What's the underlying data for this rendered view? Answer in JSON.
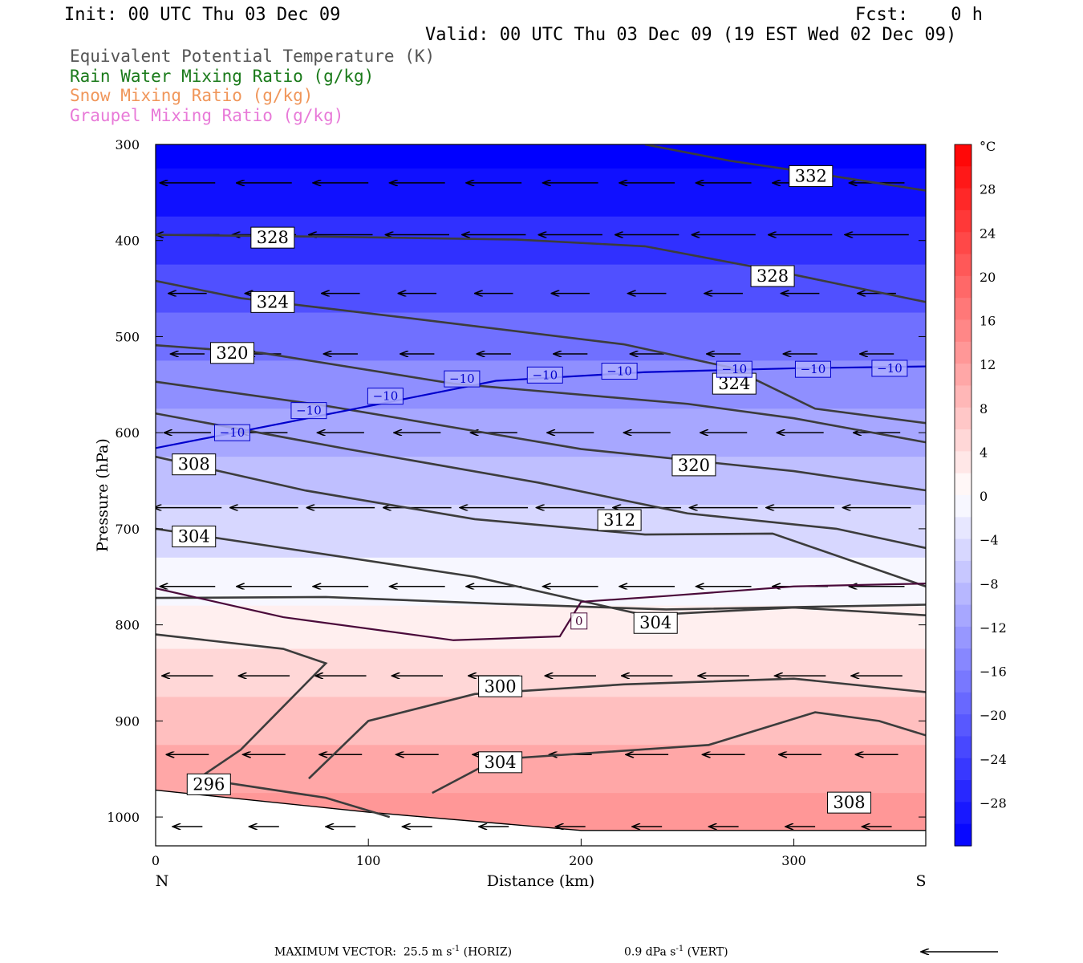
{
  "header": {
    "init": "Init: 00 UTC Thu 03 Dec 09",
    "fcst": "Fcst:    0 h",
    "valid": "Valid: 00 UTC Thu 03 Dec 09 (19 EST Wed 02 Dec 09)"
  },
  "fields": [
    {
      "label": "Equivalent Potential Temperature (K)",
      "color": "#555555"
    },
    {
      "label": "Rain Water Mixing Ratio (g/kg)",
      "color": "#1a7a1a"
    },
    {
      "label": "Snow Mixing Ratio (g/kg)",
      "color": "#f0965a"
    },
    {
      "label": "Graupel Mixing Ratio (g/kg)",
      "color": "#e87ad8"
    }
  ],
  "footer": {
    "max_label": "MAXIMUM VECTOR:",
    "horiz_value": "25.5 m s",
    "horiz_exp": "-1",
    "horiz_unit": "(HORIZ)",
    "vert_value": "0.9 dPa s",
    "vert_exp": "-1",
    "vert_unit": "(VERT)"
  },
  "chart_data": {
    "type": "cross-section contour",
    "xlabel": "Distance (km)",
    "ylabel": "Pressure (hPa)",
    "xlim": [
      0,
      362
    ],
    "ylim": [
      1030,
      300
    ],
    "x_ticks": [
      0,
      100,
      200,
      300
    ],
    "y_ticks": [
      300,
      400,
      500,
      600,
      700,
      800,
      900,
      1000
    ],
    "end_labels": {
      "left": "N",
      "right": "S"
    },
    "colorbar": {
      "unit": "°C",
      "tick_labels": [
        "28",
        "24",
        "20",
        "16",
        "12",
        "8",
        "4",
        "0",
        "−4",
        "−8",
        "−12",
        "−16",
        "−20",
        "−24",
        "−28"
      ],
      "tick_values": [
        28,
        24,
        20,
        16,
        12,
        8,
        4,
        0,
        -4,
        -8,
        -12,
        -16,
        -20,
        -24,
        -28
      ],
      "range": [
        -32,
        32
      ],
      "cold_color": "#0000ff",
      "zero_color": "#ffffff",
      "warm_color": "#ff0000"
    },
    "temperature_fill": [
      {
        "p": 300,
        "t": -34
      },
      {
        "p": 350,
        "t": -30
      },
      {
        "p": 400,
        "t": -26
      },
      {
        "p": 450,
        "t": -22
      },
      {
        "p": 500,
        "t": -18
      },
      {
        "p": 550,
        "t": -14
      },
      {
        "p": 600,
        "t": -11
      },
      {
        "p": 650,
        "t": -8
      },
      {
        "p": 700,
        "t": -5
      },
      {
        "p": 760,
        "t": -1
      },
      {
        "p": 800,
        "t": 2
      },
      {
        "p": 850,
        "t": 5
      },
      {
        "p": 900,
        "t": 8
      },
      {
        "p": 950,
        "t": 11
      },
      {
        "p": 1000,
        "t": 13
      }
    ],
    "theta_e_contours": [
      {
        "value": 332,
        "label": "332",
        "points": [
          [
            230,
            300
          ],
          [
            270,
            317
          ],
          [
            310,
            330
          ],
          [
            362,
            348
          ]
        ],
        "label_at": [
          308,
          333
        ]
      },
      {
        "value": 328,
        "label": "328",
        "points": [
          [
            0,
            394
          ],
          [
            80,
            396
          ],
          [
            170,
            399
          ],
          [
            230,
            406
          ],
          [
            290,
            431
          ],
          [
            362,
            464
          ]
        ],
        "label_at": [
          55,
          397
        ]
      },
      {
        "value": 328,
        "label": "328",
        "points": [],
        "label_at": [
          290,
          437
        ]
      },
      {
        "value": 324,
        "label": "324",
        "points": [
          [
            0,
            442
          ],
          [
            40,
            460
          ],
          [
            120,
            481
          ],
          [
            220,
            508
          ],
          [
            270,
            532
          ],
          [
            310,
            575
          ],
          [
            362,
            590
          ]
        ],
        "label_at": [
          55,
          464
        ]
      },
      {
        "value": 324,
        "label": "324",
        "points": [],
        "label_at": [
          272,
          549
        ]
      },
      {
        "value": 320,
        "label": "320",
        "points": [
          [
            0,
            509
          ],
          [
            50,
            517
          ],
          [
            140,
            549
          ],
          [
            250,
            570
          ],
          [
            300,
            585
          ],
          [
            362,
            610
          ]
        ],
        "label_at": [
          36,
          517
        ]
      },
      {
        "value": 320,
        "label": "320",
        "points": [
          [
            0,
            547
          ],
          [
            80,
            572
          ],
          [
            200,
            617
          ],
          [
            300,
            640
          ],
          [
            362,
            660
          ]
        ],
        "label_at": [
          253,
          634
        ]
      },
      {
        "value": 312,
        "label": "312",
        "points": [
          [
            0,
            580
          ],
          [
            90,
            617
          ],
          [
            180,
            652
          ],
          [
            250,
            684
          ],
          [
            320,
            700
          ],
          [
            362,
            720
          ]
        ],
        "label_at": [
          218,
          691
        ]
      },
      {
        "value": 308,
        "label": "308",
        "points": [
          [
            0,
            625
          ],
          [
            70,
            660
          ],
          [
            150,
            690
          ],
          [
            230,
            706
          ],
          [
            290,
            705
          ],
          [
            362,
            760
          ]
        ],
        "label_at": [
          18,
          633
        ]
      },
      {
        "value": 304,
        "label": "304",
        "points": [
          [
            0,
            700
          ],
          [
            60,
            720
          ],
          [
            150,
            750
          ],
          [
            230,
            790
          ],
          [
            300,
            782
          ],
          [
            362,
            790
          ]
        ],
        "label_at": [
          18,
          708
        ]
      },
      {
        "value": 304,
        "label": "304",
        "points": [
          [
            0,
            772
          ],
          [
            80,
            771
          ],
          [
            160,
            778
          ],
          [
            240,
            784
          ],
          [
            362,
            779
          ]
        ],
        "label_at": [
          235,
          798
        ]
      },
      {
        "value": 300,
        "label": "300",
        "points": [
          [
            0,
            810
          ],
          [
            60,
            825
          ],
          [
            80,
            840
          ],
          [
            40,
            930
          ],
          [
            20,
            960
          ],
          [
            80,
            980
          ],
          [
            110,
            1000
          ]
        ],
        "label_at": [
          162,
          864
        ]
      },
      {
        "value": 296,
        "label": "296",
        "points": [],
        "label_at": [
          25,
          966
        ]
      },
      {
        "value": 304,
        "label": "304",
        "points": [
          [
            72,
            960
          ],
          [
            100,
            900
          ],
          [
            150,
            872
          ],
          [
            220,
            862
          ],
          [
            300,
            856
          ],
          [
            362,
            870
          ]
        ],
        "label_at": [
          162,
          943
        ]
      },
      {
        "value": 308,
        "label": "308",
        "points": [
          [
            130,
            975
          ],
          [
            160,
            940
          ],
          [
            260,
            925
          ],
          [
            310,
            891
          ],
          [
            340,
            900
          ],
          [
            362,
            915
          ]
        ],
        "label_at": [
          326,
          985
        ]
      }
    ],
    "isotherms": [
      {
        "value": -10,
        "label": "−10",
        "color": "#0000cc",
        "points": [
          [
            0,
            616
          ],
          [
            60,
            590
          ],
          [
            110,
            568
          ],
          [
            160,
            546
          ],
          [
            230,
            537
          ],
          [
            300,
            533
          ],
          [
            362,
            531
          ]
        ],
        "label_at": [
          [
            36,
            600
          ],
          [
            72,
            577
          ],
          [
            108,
            562
          ],
          [
            144,
            544
          ],
          [
            183,
            540
          ],
          [
            218,
            536
          ],
          [
            272,
            534
          ],
          [
            309,
            534
          ],
          [
            345,
            533
          ]
        ]
      },
      {
        "value": 0,
        "label": "0",
        "color": "#4a0a3a",
        "points": [
          [
            0,
            762
          ],
          [
            60,
            792
          ],
          [
            140,
            816
          ],
          [
            190,
            812
          ],
          [
            200,
            776
          ],
          [
            240,
            770
          ],
          [
            300,
            760
          ],
          [
            362,
            757
          ]
        ],
        "label_at": [
          [
            199,
            796
          ]
        ]
      }
    ],
    "wind_vector_rows": [
      {
        "p": 340,
        "length_km": 26
      },
      {
        "p": 394,
        "length_km": 30
      },
      {
        "p": 455,
        "length_km": 18
      },
      {
        "p": 518,
        "length_km": 16
      },
      {
        "p": 600,
        "length_km": 22
      },
      {
        "p": 678,
        "length_km": 32
      },
      {
        "p": 760,
        "length_km": 26
      },
      {
        "p": 853,
        "length_km": 24
      },
      {
        "p": 935,
        "length_km": 20
      },
      {
        "p": 1010,
        "length_km": 14
      }
    ],
    "surface": {
      "points": [
        [
          0,
          972
        ],
        [
          100,
          995
        ],
        [
          200,
          1014
        ],
        [
          362,
          1014
        ]
      ]
    }
  }
}
